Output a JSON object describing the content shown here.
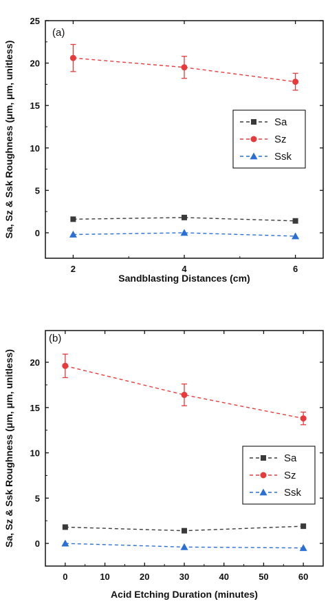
{
  "chart_data": [
    {
      "type": "line",
      "panel_label": "(a)",
      "xlabel": "Sandblasting Distances (cm)",
      "ylabel": "Sa, Sz & Ssk Roughness (μm, μm, unitless)",
      "xlim": [
        1.5,
        6.5
      ],
      "ylim": [
        -3,
        25
      ],
      "xticks": [
        2,
        4,
        6
      ],
      "yticks": [
        0,
        5,
        10,
        15,
        20,
        25
      ],
      "legend_position": "right",
      "series": [
        {
          "name": "Sa",
          "color": "#3a3a3a",
          "marker": "square",
          "x": [
            2,
            4,
            6
          ],
          "y": [
            1.6,
            1.8,
            1.4
          ],
          "err": [
            0,
            0,
            0
          ]
        },
        {
          "name": "Sz",
          "color": "#e83a3a",
          "marker": "circle",
          "x": [
            2,
            4,
            6
          ],
          "y": [
            20.6,
            19.5,
            17.8
          ],
          "err": [
            1.6,
            1.3,
            1.0
          ]
        },
        {
          "name": "Ssk",
          "color": "#2a6fd6",
          "marker": "triangle",
          "x": [
            2,
            4,
            6
          ],
          "y": [
            -0.2,
            0.0,
            -0.4
          ],
          "err": [
            0,
            0,
            0
          ]
        }
      ]
    },
    {
      "type": "line",
      "panel_label": "(b)",
      "xlabel": "Acid Etching Duration (minutes)",
      "ylabel": "Sa, Sz & Ssk Roughness (μm, μm, unitless)",
      "xlim": [
        -5,
        65
      ],
      "ylim": [
        -2.5,
        23.5
      ],
      "xticks": [
        0,
        10,
        20,
        30,
        40,
        50,
        60
      ],
      "yticks": [
        0,
        5,
        10,
        15,
        20
      ],
      "legend_position": "right",
      "series": [
        {
          "name": "Sa",
          "color": "#3a3a3a",
          "marker": "square",
          "x": [
            0,
            30,
            60
          ],
          "y": [
            1.8,
            1.4,
            1.9
          ],
          "err": [
            0,
            0,
            0
          ]
        },
        {
          "name": "Sz",
          "color": "#e83a3a",
          "marker": "circle",
          "x": [
            0,
            30,
            60
          ],
          "y": [
            19.6,
            16.4,
            13.8
          ],
          "err": [
            1.3,
            1.2,
            0.7
          ]
        },
        {
          "name": "Ssk",
          "color": "#2a6fd6",
          "marker": "triangle",
          "x": [
            0,
            30,
            60
          ],
          "y": [
            0.0,
            -0.4,
            -0.5
          ],
          "err": [
            0,
            0,
            0
          ]
        }
      ]
    }
  ]
}
